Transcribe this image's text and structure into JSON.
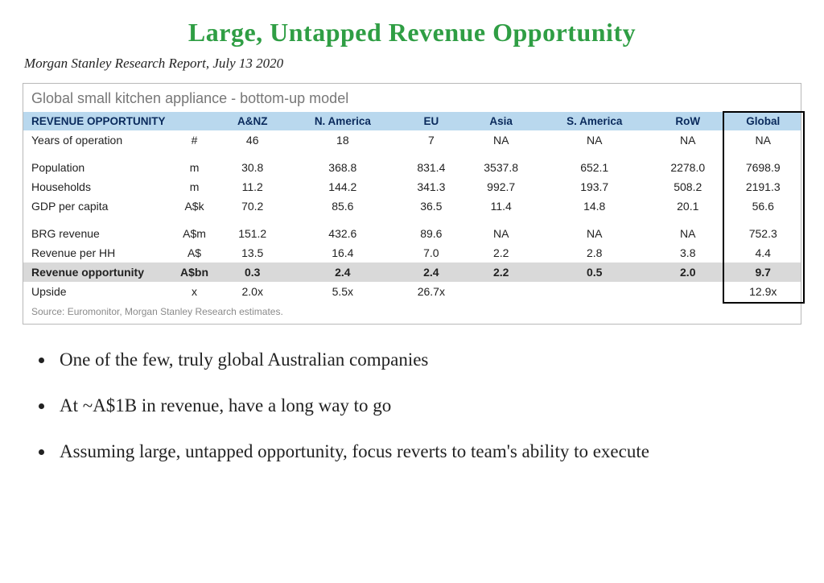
{
  "colors": {
    "title_green": "#2f9e44",
    "header_row_bg": "#b9d8ee",
    "header_text": "#0a2a5c",
    "highlight_row_bg": "#d9d9d9",
    "table_border": "#b8b8b8",
    "muted_text": "#777777",
    "source_text": "#8a8a8a",
    "body_text": "#222222",
    "background": "#ffffff",
    "global_box_border": "#000000"
  },
  "typography": {
    "title_fontsize": 32,
    "subtitle_fontsize": 17,
    "table_title_fontsize": 18,
    "table_body_fontsize": 14,
    "bullets_fontsize": 23,
    "body_font": "Georgia, serif",
    "table_font": "Arial, sans-serif"
  },
  "title": "Large, Untapped Revenue Opportunity",
  "subtitle": "Morgan Stanley Research Report, July 13 2020",
  "table": {
    "type": "table",
    "title": "Global small kitchen appliance - bottom-up model",
    "header_label": "REVENUE OPPORTUNITY",
    "unit_header": "",
    "columns": [
      "A&NZ",
      "N. America",
      "EU",
      "Asia",
      "S. America",
      "RoW",
      "Global"
    ],
    "global_column_index": 6,
    "rows": [
      {
        "label": "Years of operation",
        "unit": "#",
        "cells": [
          "46",
          "18",
          "7",
          "NA",
          "NA",
          "NA",
          "NA"
        ],
        "bold": false,
        "highlight": false,
        "spacer_after": true
      },
      {
        "label": "Population",
        "unit": "m",
        "cells": [
          "30.8",
          "368.8",
          "831.4",
          "3537.8",
          "652.1",
          "2278.0",
          "7698.9"
        ],
        "bold": false,
        "highlight": false,
        "spacer_after": false
      },
      {
        "label": "Households",
        "unit": "m",
        "cells": [
          "11.2",
          "144.2",
          "341.3",
          "992.7",
          "193.7",
          "508.2",
          "2191.3"
        ],
        "bold": false,
        "highlight": false,
        "spacer_after": false
      },
      {
        "label": "GDP per capita",
        "unit": "A$k",
        "cells": [
          "70.2",
          "85.6",
          "36.5",
          "11.4",
          "14.8",
          "20.1",
          "56.6"
        ],
        "bold": false,
        "highlight": false,
        "spacer_after": true
      },
      {
        "label": "BRG revenue",
        "unit": "A$m",
        "cells": [
          "151.2",
          "432.6",
          "89.6",
          "NA",
          "NA",
          "NA",
          "752.3"
        ],
        "bold": false,
        "highlight": false,
        "spacer_after": false
      },
      {
        "label": "Revenue per HH",
        "unit": "A$",
        "cells": [
          "13.5",
          "16.4",
          "7.0",
          "2.2",
          "2.8",
          "3.8",
          "4.4"
        ],
        "bold": false,
        "highlight": false,
        "spacer_after": false
      },
      {
        "label": "Revenue opportunity",
        "unit": "A$bn",
        "cells": [
          "0.3",
          "2.4",
          "2.4",
          "2.2",
          "0.5",
          "2.0",
          "9.7"
        ],
        "bold": true,
        "highlight": true,
        "spacer_after": false
      },
      {
        "label": "Upside",
        "unit": "x",
        "cells": [
          "2.0x",
          "5.5x",
          "26.7x",
          "",
          "",
          "",
          "12.9x"
        ],
        "bold": false,
        "highlight": false,
        "spacer_after": false
      }
    ],
    "source": "Source: Euromonitor, Morgan Stanley Research estimates."
  },
  "bullets": [
    "One of the few, truly global Australian companies",
    "At ~A$1B in revenue, have a long way to go",
    "Assuming large, untapped opportunity, focus reverts to team's ability to execute"
  ]
}
